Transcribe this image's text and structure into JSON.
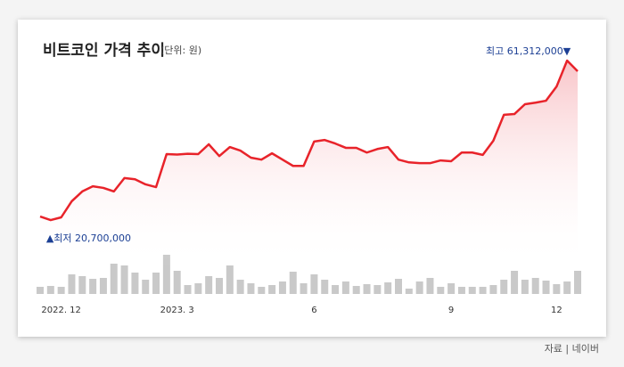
{
  "chart_data": {
    "type": "line",
    "title": "비트코인 가격 추이",
    "subtitle": "(단위: 원)",
    "annotations": [
      {
        "text": "최고 61,312,000▼",
        "index": 50
      },
      {
        "text": "▲최저 20,700,000",
        "index": 1
      }
    ],
    "source": "자료 | 네이버",
    "categories": [
      null,
      null,
      "2022. 12",
      null,
      null,
      null,
      null,
      null,
      null,
      null,
      null,
      null,
      null,
      "2023. 3",
      null,
      null,
      null,
      null,
      null,
      null,
      null,
      null,
      null,
      null,
      null,
      null,
      "6",
      null,
      null,
      null,
      null,
      null,
      null,
      null,
      null,
      null,
      null,
      null,
      null,
      "9",
      null,
      null,
      null,
      null,
      null,
      null,
      null,
      null,
      null,
      "12",
      null,
      null
    ],
    "values": [
      21600000,
      20700000,
      21400000,
      25500000,
      28000000,
      29300000,
      28900000,
      28000000,
      31400000,
      31100000,
      29800000,
      29100000,
      37500000,
      37400000,
      37600000,
      37500000,
      40000000,
      37000000,
      39300000,
      38400000,
      36600000,
      36100000,
      37700000,
      36100000,
      34500000,
      34500000,
      40700000,
      41100000,
      40200000,
      39100000,
      39100000,
      37900000,
      38800000,
      39300000,
      36100000,
      35400000,
      35200000,
      35200000,
      35900000,
      35700000,
      37900000,
      37900000,
      37300000,
      40900000,
      47500000,
      47700000,
      50200000,
      50600000,
      51100000,
      54700000,
      61312000,
      58600000
    ],
    "color": "#e8232a",
    "ylim": [
      8700000,
      65400000
    ],
    "volume": [
      8,
      9,
      8,
      22,
      20,
      17,
      18,
      34,
      32,
      24,
      16,
      24,
      44,
      26,
      10,
      12,
      20,
      18,
      32,
      16,
      12,
      8,
      10,
      14,
      25,
      12,
      22,
      16,
      10,
      14,
      9,
      11,
      10,
      13,
      17,
      6,
      14,
      18,
      8,
      12,
      8,
      8,
      8,
      10,
      16,
      26,
      16,
      18,
      15,
      11,
      14,
      26
    ],
    "volume_color": "#c9c9c9",
    "volume_lim": [
      0,
      50
    ]
  }
}
